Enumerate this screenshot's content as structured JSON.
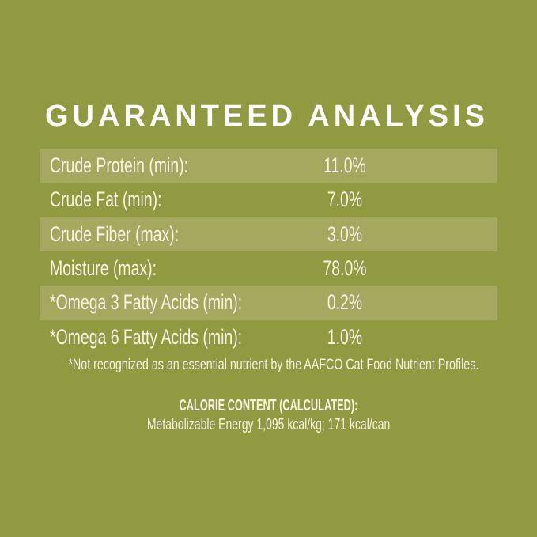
{
  "colors": {
    "background": "#909A40",
    "row_highlight": "#A4A95F",
    "title_text": "#FFFFFF",
    "body_text": "#F5F3E3"
  },
  "panel": {
    "title": "GUARANTEED ANALYSIS",
    "analysis_table": {
      "rows": [
        {
          "label": "Crude Protein (min):",
          "value": "11.0%"
        },
        {
          "label": "Crude Fat (min):",
          "value": "7.0%"
        },
        {
          "label": "Crude Fiber (max):",
          "value": "3.0%"
        },
        {
          "label": "Moisture (max):",
          "value": "78.0%"
        },
        {
          "label": "*Omega 3 Fatty Acids (min):",
          "value": "0.2%"
        },
        {
          "label": "*Omega 6 Fatty Acids (min):",
          "value": "1.0%"
        }
      ]
    },
    "footnote": "*Not recognized as an essential nutrient by the AAFCO Cat Food Nutrient Profiles.",
    "calorie_section": {
      "heading": "CALORIE CONTENT (CALCULATED):",
      "detail": "Metabolizable Energy 1,095 kcal/kg; 171 kcal/can"
    }
  }
}
